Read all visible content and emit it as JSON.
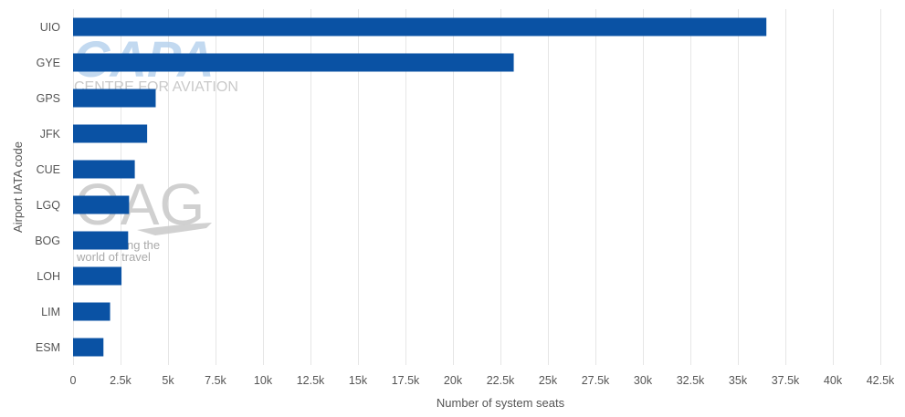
{
  "chart_data": {
    "type": "bar",
    "orientation": "horizontal",
    "categories": [
      "UIO",
      "GYE",
      "GPS",
      "JFK",
      "CUE",
      "LGQ",
      "BOG",
      "LOH",
      "LIM",
      "ESM"
    ],
    "values": [
      36500,
      23200,
      4350,
      3900,
      3250,
      2950,
      2900,
      2550,
      1950,
      1600
    ],
    "xlabel": "Number of system seats",
    "ylabel": "Airport IATA code",
    "xlim": [
      0,
      42500
    ],
    "xticks": [
      0,
      2500,
      5000,
      7500,
      10000,
      12500,
      15000,
      17500,
      20000,
      22500,
      25000,
      27500,
      30000,
      32500,
      35000,
      37500,
      40000,
      42500
    ],
    "xtick_labels": [
      "0",
      "2.5k",
      "5k",
      "7.5k",
      "10k",
      "12.5k",
      "15k",
      "17.5k",
      "20k",
      "22.5k",
      "25k",
      "27.5k",
      "30k",
      "32.5k",
      "35k",
      "37.5k",
      "40k",
      "42.5k"
    ],
    "bar_color": "#0A52A4",
    "grid": "vertical",
    "legend": "none"
  },
  "watermarks": {
    "capa_logo": "CAPA",
    "capa_tagline": "CENTRE FOR AVIATION",
    "oag_logo": "OAG",
    "oag_tagline_1": "ng the",
    "oag_tagline_2": "world of travel"
  },
  "colors": {
    "grid": "#e6e6e6",
    "axis_text": "#555555",
    "capa_watermark": "#b8d3ee",
    "oag_watermark": "#cccccc"
  }
}
